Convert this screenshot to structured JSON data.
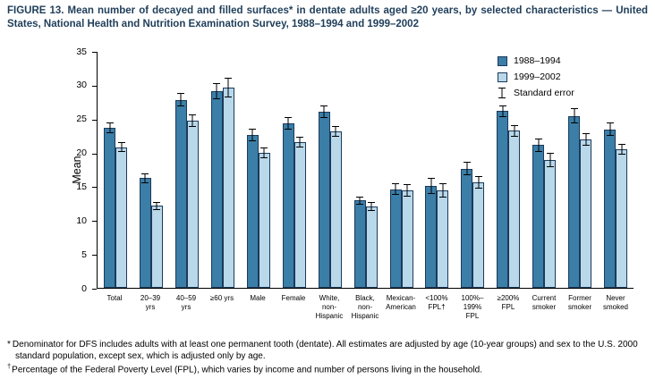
{
  "title": {
    "text": "FIGURE 13. Mean number of decayed and filled surfaces* in dentate adults aged ≥20 years, by selected characteristics — United States, National Health and Nutrition Examination Survey, 1988–1994 and 1999–2002"
  },
  "legend": {
    "standard_error_label": "Standard error"
  },
  "footnotes": [
    {
      "marker": "*",
      "text": "Denominator for DFS includes adults with at least one permanent tooth (dentate). All estimates are adjusted by age (10-year groups) and sex to the U.S. 2000 standard population, except sex, which is adjusted only by age."
    },
    {
      "marker": "†",
      "text": "Percentage of the Federal Poverty Level (FPL), which varies by income and number of persons living in the household."
    }
  ],
  "chart_data": {
    "type": "bar",
    "title": "Mean number of decayed and filled surfaces in dentate adults aged ≥20 years, NHANES 1988–1994 and 1999–2002",
    "xlabel": "",
    "ylabel": "Mean",
    "ylim": [
      0,
      35
    ],
    "yticks": [
      0,
      5,
      10,
      15,
      20,
      25,
      30,
      35
    ],
    "grid": false,
    "legend_position": "top-right",
    "error_bars": true,
    "colors": {
      "series_1988_1994": "#3b7ea8",
      "series_1999_2002": "#b9d8ea",
      "bar_border": "#1c3a5a",
      "title_text": "#1f3e5a"
    },
    "categories": [
      {
        "key": "total",
        "label_lines": [
          "Total"
        ]
      },
      {
        "key": "20-39-yrs",
        "label_lines": [
          "20–39",
          "yrs"
        ]
      },
      {
        "key": "40-59-yrs",
        "label_lines": [
          "40–59",
          "yrs"
        ]
      },
      {
        "key": "60plus-yrs",
        "label_lines": [
          "≥60 yrs"
        ]
      },
      {
        "key": "male",
        "label_lines": [
          "Male"
        ]
      },
      {
        "key": "female",
        "label_lines": [
          "Female"
        ]
      },
      {
        "key": "white-non-hispanic",
        "label_lines": [
          "White,",
          "non-",
          "Hispanic"
        ]
      },
      {
        "key": "black-non-hispanic",
        "label_lines": [
          "Black,",
          "non-",
          "Hispanic"
        ]
      },
      {
        "key": "mexican-american",
        "label_lines": [
          "Mexican-",
          "American"
        ]
      },
      {
        "key": "under-100-fpl",
        "label_lines": [
          "<100%",
          "FPL†"
        ]
      },
      {
        "key": "100-199-fpl",
        "label_lines": [
          "100%–",
          "199%",
          "FPL"
        ]
      },
      {
        "key": "200plus-fpl",
        "label_lines": [
          "≥200%",
          "FPL"
        ]
      },
      {
        "key": "current-smoker",
        "label_lines": [
          "Current",
          "smoker"
        ]
      },
      {
        "key": "former-smoker",
        "label_lines": [
          "Former",
          "smoker"
        ]
      },
      {
        "key": "never-smoked",
        "label_lines": [
          "Never",
          "smoked"
        ]
      }
    ],
    "series": [
      {
        "key": "1988-1994",
        "name": "1988–1994",
        "values": [
          23.6,
          16.2,
          27.8,
          29.1,
          22.6,
          24.3,
          26.0,
          12.9,
          14.6,
          15.1,
          17.6,
          26.1,
          21.1,
          25.4,
          23.4
        ],
        "errors": [
          0.8,
          0.7,
          1.0,
          1.2,
          0.9,
          0.9,
          0.9,
          0.6,
          0.8,
          1.2,
          1.0,
          0.9,
          1.0,
          1.1,
          1.0
        ]
      },
      {
        "key": "1999-2002",
        "name": "1999–2002",
        "values": [
          20.8,
          12.1,
          24.7,
          29.6,
          20.0,
          21.5,
          23.1,
          12.0,
          14.4,
          14.4,
          15.6,
          23.2,
          18.9,
          21.9,
          20.5
        ],
        "errors": [
          0.7,
          0.6,
          0.9,
          1.4,
          0.8,
          0.8,
          0.8,
          0.7,
          0.9,
          1.0,
          0.9,
          0.9,
          1.0,
          0.9,
          0.8
        ]
      }
    ]
  }
}
